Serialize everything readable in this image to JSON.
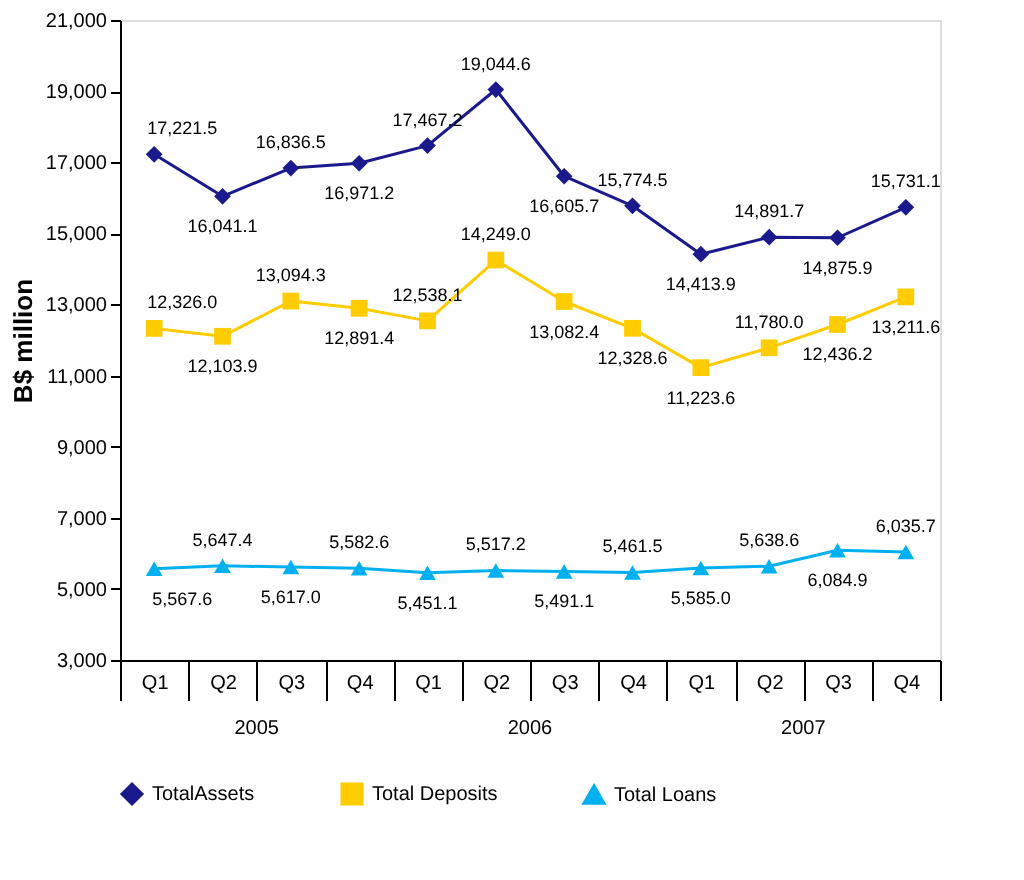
{
  "chart_data": {
    "type": "line",
    "ylabel": "B$ million",
    "categories": [
      "Q1",
      "Q2",
      "Q3",
      "Q4",
      "Q1",
      "Q2",
      "Q3",
      "Q4",
      "Q1",
      "Q2",
      "Q3",
      "Q4"
    ],
    "annotations": [
      "2005",
      "2006",
      "2007"
    ],
    "ylim": [
      3000,
      21000
    ],
    "yticks": [
      {
        "value": 3000,
        "label": "3,000"
      },
      {
        "value": 5000,
        "label": "5,000"
      },
      {
        "value": 7000,
        "label": "7,000"
      },
      {
        "value": 9000,
        "label": "9,000"
      },
      {
        "value": 11000,
        "label": "11,000"
      },
      {
        "value": 13000,
        "label": "13,000"
      },
      {
        "value": 15000,
        "label": "15,000"
      },
      {
        "value": 17000,
        "label": "17,000"
      },
      {
        "value": 19000,
        "label": "19,000"
      },
      {
        "value": 21000,
        "label": "21,000"
      }
    ],
    "grid": false,
    "legend": "bottom",
    "data_labels": true,
    "series": [
      {
        "name": "TotalAssets",
        "color": "#1a1a8c",
        "marker": "diamond",
        "values": [
          17221.5,
          16041.1,
          16836.5,
          16971.2,
          17467.2,
          19044.6,
          16605.7,
          15774.5,
          14413.9,
          14891.7,
          14875.9,
          15731.1
        ],
        "value_labels": [
          "17,221.5",
          "16,041.1",
          "16,836.5",
          "16,971.2",
          "17,467.2",
          "19,044.6",
          "16,605.7",
          "15,774.5",
          "14,413.9",
          "14,891.7",
          "14,875.9",
          "15,731.1"
        ]
      },
      {
        "name": "Total Deposits",
        "color": "#ffcc00",
        "marker": "square",
        "values": [
          12326.0,
          12103.9,
          13094.3,
          12891.4,
          12538.1,
          14249.0,
          13082.4,
          12328.6,
          11223.6,
          11780.0,
          12436.2,
          13211.6
        ],
        "value_labels": [
          "12,326.0",
          "12,103.9",
          "13,094.3",
          "12,891.4",
          "12,538.1",
          "14,249.0",
          "13,082.4",
          "12,328.6",
          "11,223.6",
          "11,780.0",
          "12,436.2",
          "13,211.6"
        ]
      },
      {
        "name": "Total Loans",
        "color": "#00b0f0",
        "marker": "triangle",
        "values": [
          5567.6,
          5647.4,
          5617.0,
          5582.6,
          5451.1,
          5517.2,
          5491.1,
          5461.5,
          5585.0,
          5638.6,
          6084.9,
          6035.7
        ],
        "value_labels": [
          "5,567.6",
          "5,647.4",
          "5,617.0",
          "5,582.6",
          "5,451.1",
          "5,517.2",
          "5,491.1",
          "5,461.5",
          "5,585.0",
          "5,638.6",
          "6,084.9",
          "6,035.7"
        ]
      }
    ]
  }
}
